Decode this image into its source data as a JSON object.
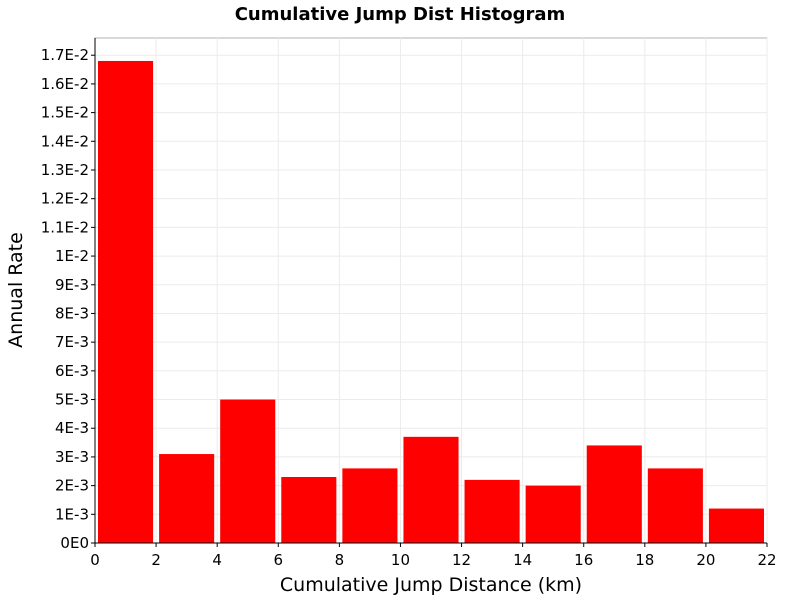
{
  "chart_data": {
    "type": "bar",
    "title": "Cumulative Jump Dist Histogram",
    "xlabel": "Cumulative Jump Distance (km)",
    "ylabel": "Annual Rate",
    "bin_width": 2,
    "x": [
      1,
      3,
      5,
      7,
      9,
      11,
      13,
      15,
      17,
      19,
      21
    ],
    "values": [
      0.0168,
      0.0031,
      0.005,
      0.0023,
      0.0026,
      0.0037,
      0.0022,
      0.002,
      0.0034,
      0.0026,
      0.0012
    ],
    "xlim": [
      0,
      22
    ],
    "ylim": [
      0,
      0.0176
    ],
    "x_ticks": [
      0,
      2,
      4,
      6,
      8,
      10,
      12,
      14,
      16,
      18,
      20,
      22
    ],
    "x_tick_labels": [
      "0",
      "2",
      "4",
      "6",
      "8",
      "10",
      "12",
      "14",
      "16",
      "18",
      "20",
      "22"
    ],
    "y_ticks": [
      0,
      0.001,
      0.002,
      0.003,
      0.004,
      0.005,
      0.006,
      0.007,
      0.008,
      0.009,
      0.01,
      0.011,
      0.012,
      0.013,
      0.014,
      0.015,
      0.016,
      0.017
    ],
    "y_tick_labels": [
      "0E0",
      "1E-3",
      "2E-3",
      "3E-3",
      "4E-3",
      "5E-3",
      "6E-3",
      "7E-3",
      "8E-3",
      "9E-3",
      "1E-2",
      "1.1E-2",
      "1.2E-2",
      "1.3E-2",
      "1.4E-2",
      "1.5E-2",
      "1.6E-2",
      "1.7E-2"
    ],
    "grid": true,
    "legend": "none",
    "bar_color": "#ff0000"
  }
}
